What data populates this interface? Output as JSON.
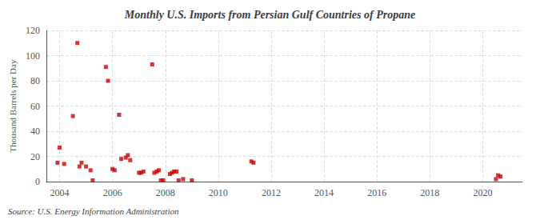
{
  "chart_data": {
    "type": "scatter",
    "title": "Monthly U.S. Imports from Persian Gulf Countries of Propane",
    "ylabel": "Thousand Barrels per Day",
    "annotations": [
      "Source: U.S. Energy Information Administration"
    ],
    "color": "#cc0000",
    "marker": "square",
    "grid": true,
    "xlim": [
      2003.5,
      2021.5
    ],
    "xticks": [
      2004,
      2006,
      2008,
      2010,
      2012,
      2014,
      2016,
      2018,
      2020
    ],
    "ylim": [
      0,
      120
    ],
    "yticks": [
      0,
      20,
      40,
      60,
      80,
      100,
      120
    ],
    "x": [
      2003.92,
      2004.0,
      2004.17,
      2004.5,
      2004.67,
      2004.75,
      2004.83,
      2005.0,
      2005.17,
      2005.25,
      2005.75,
      2005.83,
      2006.0,
      2006.08,
      2006.25,
      2006.33,
      2006.5,
      2006.58,
      2006.67,
      2007.0,
      2007.08,
      2007.17,
      2007.5,
      2007.58,
      2007.67,
      2007.75,
      2007.83,
      2007.92,
      2008.17,
      2008.25,
      2008.33,
      2008.42,
      2008.5,
      2008.67,
      2009.0,
      2011.25,
      2011.33,
      2020.5,
      2020.58,
      2020.67
    ],
    "values": [
      15,
      27,
      14,
      52,
      110,
      12,
      15,
      12,
      9,
      1,
      91,
      80,
      10,
      9,
      53,
      18,
      19,
      21,
      17,
      7,
      7,
      8,
      93,
      7,
      8,
      9,
      1,
      1,
      6,
      7,
      8,
      8,
      1,
      2,
      1,
      16,
      15,
      2,
      5,
      4
    ]
  }
}
